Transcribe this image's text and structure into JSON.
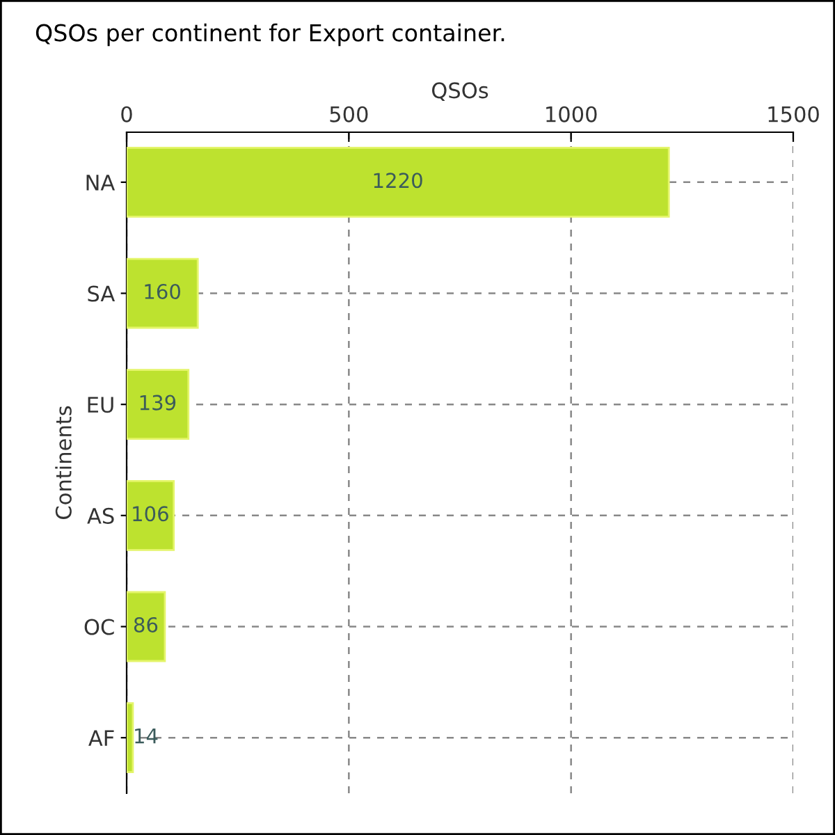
{
  "chart_data": {
    "type": "bar",
    "orientation": "horizontal",
    "title": "QSOs per continent for Export container.",
    "xlabel": "QSOs",
    "ylabel": "Continents",
    "categories": [
      "NA",
      "SA",
      "EU",
      "AS",
      "OC",
      "AF"
    ],
    "values": [
      1220,
      160,
      139,
      106,
      86,
      14
    ],
    "color": "#bde22f",
    "xlim": [
      0,
      1500
    ],
    "xticks": [
      0,
      500,
      1000,
      1500
    ],
    "grid": true,
    "data_labels": true
  }
}
